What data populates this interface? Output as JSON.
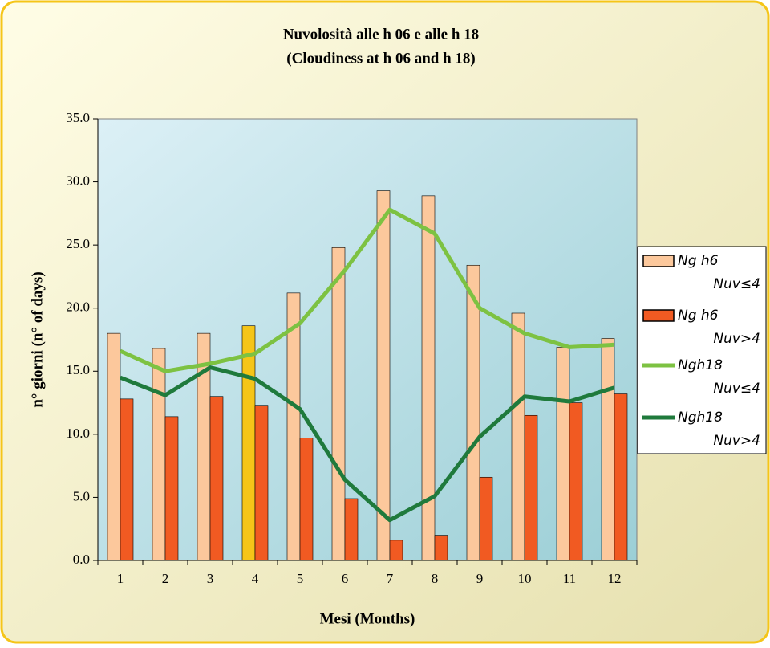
{
  "chart_data": {
    "type": "bar",
    "title": "Nuvolosità alle h 06 e alle h 18",
    "subtitle": "(Cloudiness at h 06 and h 18)",
    "xlabel": "Mesi (Months)",
    "ylabel": "n° giorni  (n° of days)",
    "categories": [
      "1",
      "2",
      "3",
      "4",
      "5",
      "6",
      "7",
      "8",
      "9",
      "10",
      "11",
      "12"
    ],
    "series": [
      {
        "name": "Ng h6 Nuv≤4",
        "kind": "bar",
        "color": "#fcc89c",
        "colors": [
          "#fcc89c",
          "#fcc89c",
          "#fcc89c",
          "#f5c518",
          "#fcc89c",
          "#fcc89c",
          "#fcc89c",
          "#fcc89c",
          "#fcc89c",
          "#fcc89c",
          "#fcc89c",
          "#fcc89c"
        ],
        "values": [
          18.0,
          16.8,
          18.0,
          18.6,
          21.2,
          24.8,
          29.3,
          28.9,
          23.4,
          19.6,
          16.9,
          17.6
        ]
      },
      {
        "name": "Ng h6 Nuv>4",
        "kind": "bar",
        "color": "#f15a22",
        "values": [
          12.8,
          11.4,
          13.0,
          12.3,
          9.7,
          4.9,
          1.6,
          2.0,
          6.6,
          11.5,
          12.5,
          13.2
        ]
      },
      {
        "name": "Ngh18 Nuv≤4",
        "kind": "line",
        "color": "#7dc242",
        "values": [
          16.6,
          15.0,
          15.6,
          16.4,
          18.8,
          23.0,
          27.8,
          25.9,
          20.0,
          18.0,
          16.9,
          17.1
        ]
      },
      {
        "name": "Ngh18 Nuv>4",
        "kind": "line",
        "color": "#1f7a3c",
        "values": [
          14.5,
          13.1,
          15.3,
          14.4,
          12.0,
          6.4,
          3.2,
          5.1,
          9.8,
          13.0,
          12.6,
          13.7
        ]
      }
    ],
    "ylim": [
      0,
      35
    ],
    "yticks": [
      {
        "value": 0,
        "label": "0.0"
      },
      {
        "value": 5,
        "label": "5.0"
      },
      {
        "value": 10,
        "label": "10.0"
      },
      {
        "value": 15,
        "label": "15.0"
      },
      {
        "value": 20,
        "label": "20.0"
      },
      {
        "value": 25,
        "label": "25.0"
      },
      {
        "value": 30,
        "label": "30.0"
      },
      {
        "value": 35,
        "label": "35.0"
      }
    ],
    "legend": "right"
  }
}
